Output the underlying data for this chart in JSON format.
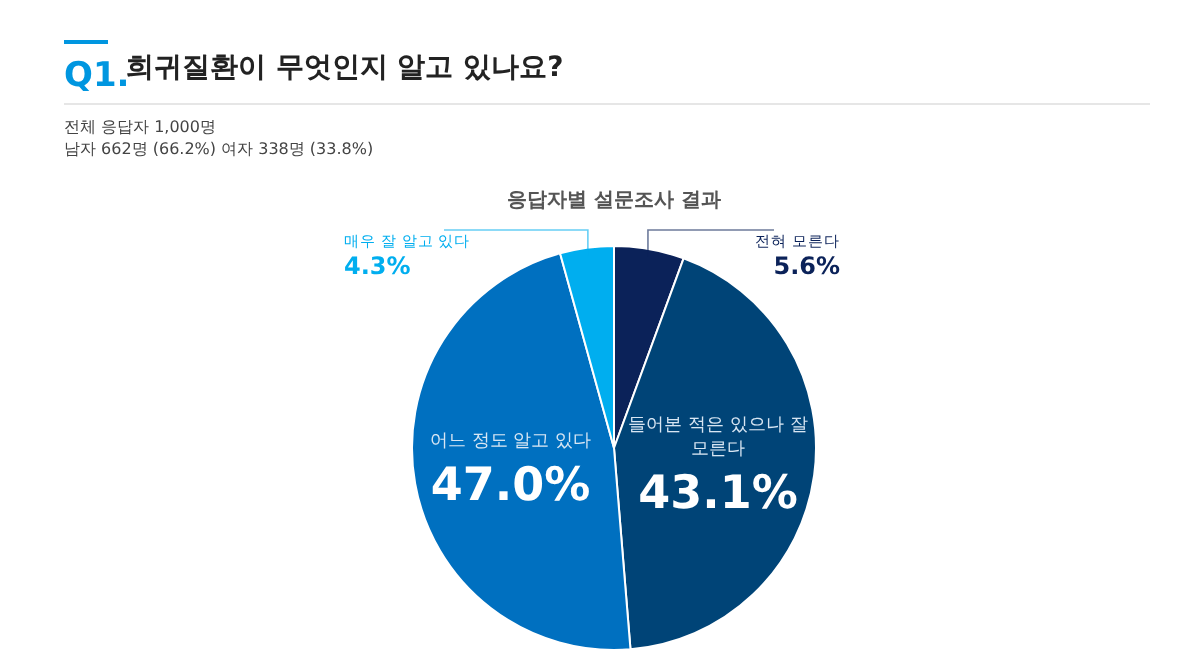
{
  "chart_data": {
    "type": "pie",
    "title": "희귀질환이 무엇인지 알고 있나요?",
    "annotations": [
      "Q1.",
      "전체 응답자 1,000명",
      "남자 662명 (66.2%) 여자 338명 (33.8%)",
      "응답자별 설문조사 결과"
    ],
    "categories": [
      "전혀 모른다",
      "들어본 적은 있으나 잘 모른다",
      "어느 정도 알고 있다",
      "매우 잘 알고 있다"
    ],
    "values": [
      5.6,
      43.1,
      47.0,
      4.3
    ],
    "value_labels": [
      "5.6%",
      "43.1%",
      "47.0%",
      "4.3%"
    ],
    "colors": [
      "#0b2259",
      "#004477",
      "#0070c0",
      "#00aeef"
    ]
  }
}
